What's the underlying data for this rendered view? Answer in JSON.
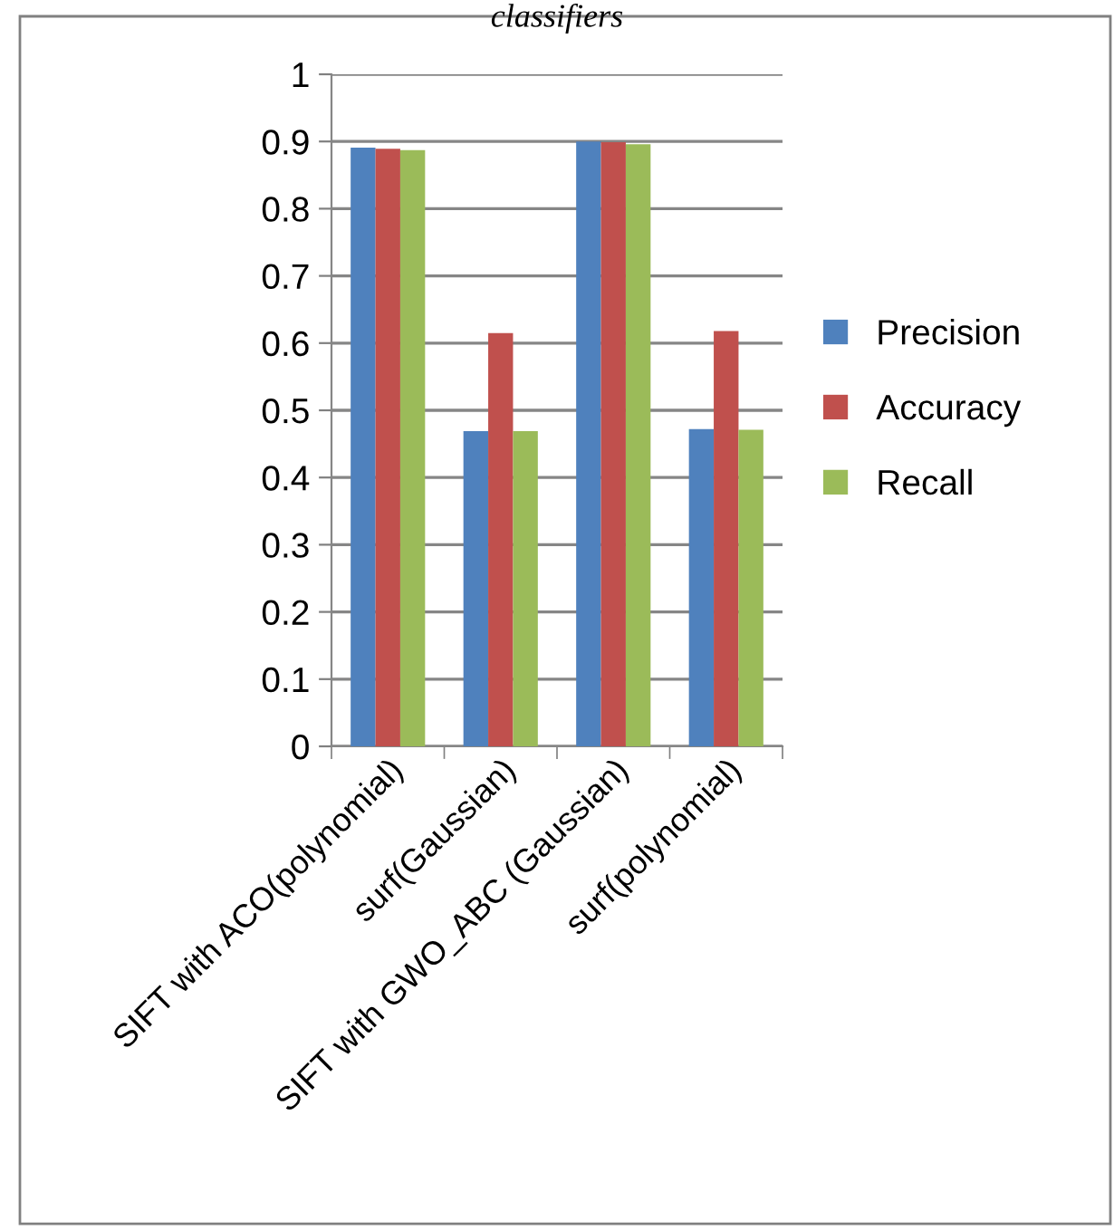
{
  "chart_data": {
    "type": "bar",
    "title": "classifiers",
    "categories": [
      "SIFT with ACO(polynomial)",
      "surf(Gaussian)",
      "SIFT with GWO_ABC (Gaussian)",
      "surf(polynomial)"
    ],
    "series": [
      {
        "name": "Precision",
        "color": "#4f81bd",
        "values": [
          0.891,
          0.469,
          0.9,
          0.472
        ]
      },
      {
        "name": "Accuracy",
        "color": "#c0504d",
        "values": [
          0.889,
          0.615,
          0.899,
          0.618
        ]
      },
      {
        "name": "Recall",
        "color": "#9bbb59",
        "values": [
          0.887,
          0.469,
          0.896,
          0.471
        ]
      }
    ],
    "ylim": [
      0,
      1
    ],
    "yticks": [
      0,
      0.1,
      0.2,
      0.3,
      0.4,
      0.5,
      0.6,
      0.7,
      0.8,
      0.9,
      1
    ],
    "grid": "y",
    "legend": "right"
  }
}
